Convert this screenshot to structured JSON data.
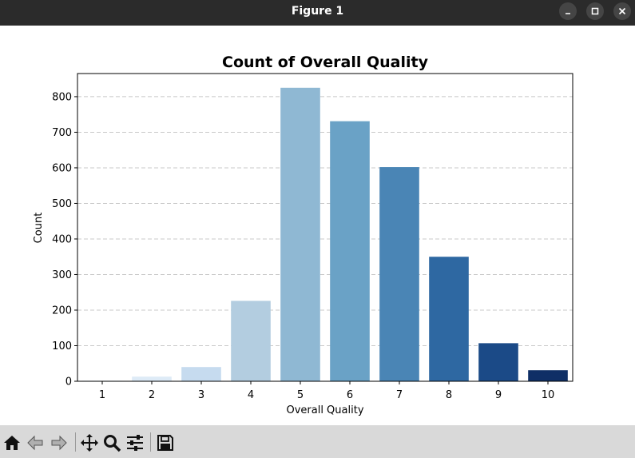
{
  "window": {
    "title": "Figure 1"
  },
  "toolbar": {
    "buttons": [
      {
        "name": "home-button",
        "icon": "home-icon"
      },
      {
        "name": "back-button",
        "icon": "back-arrow-icon"
      },
      {
        "name": "forward-button",
        "icon": "forward-arrow-icon"
      },
      {
        "name": "pan-button",
        "icon": "move-icon"
      },
      {
        "name": "zoom-button",
        "icon": "magnifier-icon"
      },
      {
        "name": "configure-subplots-button",
        "icon": "sliders-icon"
      },
      {
        "name": "save-button",
        "icon": "floppy-disk-icon"
      }
    ]
  },
  "chart_data": {
    "type": "bar",
    "title": "Count of Overall Quality",
    "xlabel": "Overall Quality",
    "ylabel": "Count",
    "categories": [
      "1",
      "2",
      "3",
      "4",
      "5",
      "6",
      "7",
      "8",
      "9",
      "10"
    ],
    "values": [
      2,
      13,
      40,
      226,
      825,
      731,
      602,
      350,
      107,
      31
    ],
    "colors": [
      "#f7fbff",
      "#deebf7",
      "#c6dbef",
      "#b3cde0",
      "#8fb8d3",
      "#6aa2c6",
      "#4a85b5",
      "#2e68a2",
      "#1b4a87",
      "#0f2f66"
    ],
    "ylim": [
      0,
      865
    ],
    "yticks": [
      0,
      100,
      200,
      300,
      400,
      500,
      600,
      700,
      800
    ],
    "grid": "horizontal dashed",
    "legend": "none"
  }
}
